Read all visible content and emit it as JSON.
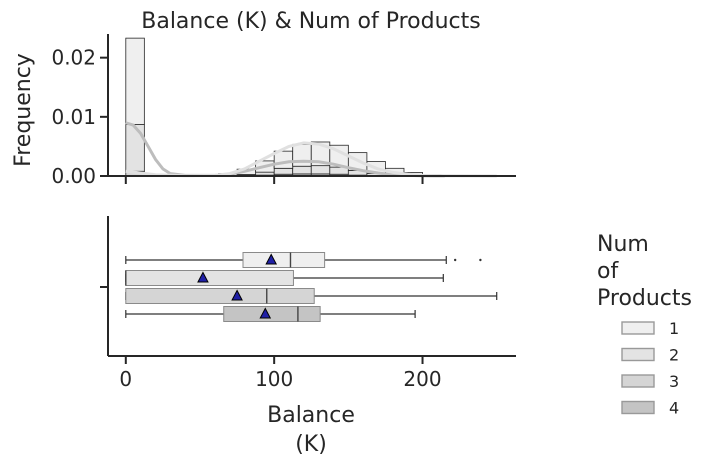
{
  "chart_data": {
    "type": "histogram+boxplot",
    "title": "Balance (K) & Num of Products",
    "histogram": {
      "ylabel": "Frequency",
      "xlim": [
        -12,
        263
      ],
      "ylim": [
        0,
        0.024
      ],
      "yticks": [
        0.0,
        0.01,
        0.02
      ],
      "ytick_labels": [
        "0.00",
        "0.01",
        "0.02"
      ],
      "bin_edges": [
        0,
        12.5,
        25,
        37.5,
        50,
        62.5,
        75,
        87.5,
        100,
        112.5,
        125,
        137.5,
        150,
        162.5,
        175,
        187.5,
        200,
        212.5,
        225,
        237.5,
        250
      ],
      "series": [
        {
          "name": "4",
          "color": "#c4c4c4",
          "values": [
            0.0001,
            0,
            0,
            0,
            0,
            0,
            0,
            5e-05,
            0.0001,
            0.0001,
            0.0001,
            0.0001,
            5e-05,
            0,
            0,
            0,
            0,
            0,
            0,
            0
          ]
        },
        {
          "name": "3",
          "color": "#d5d5d5",
          "values": [
            0.0007,
            0,
            0,
            0,
            0,
            0,
            5e-05,
            0.0001,
            0.0002,
            0.00025,
            0.00025,
            0.0002,
            0.0001,
            5e-05,
            0,
            0,
            0,
            0,
            0,
            0
          ]
        },
        {
          "name": "2",
          "color": "#e3e3e3",
          "values": [
            0.0079,
            0,
            0,
            0,
            0,
            0,
            0.0002,
            0.0005,
            0.001,
            0.0013,
            0.0014,
            0.0012,
            0.0008,
            0.0004,
            0.0002,
            0.0001,
            0,
            0,
            0,
            0
          ]
        },
        {
          "name": "1",
          "color": "#efefef",
          "values": [
            0.0146,
            0,
            0,
            0,
            0.0001,
            0.0004,
            0.0009,
            0.0019,
            0.0029,
            0.0037,
            0.004,
            0.0037,
            0.003,
            0.002,
            0.0011,
            0.0005,
            0.0002,
            0.0001,
            0,
            0
          ]
        }
      ],
      "kde": [
        {
          "name": "stacked",
          "color": "#bdbdbd",
          "points": [
            [
              0,
              0.009
            ],
            [
              5,
              0.0086
            ],
            [
              10,
              0.0072
            ],
            [
              15,
              0.005
            ],
            [
              20,
              0.0028
            ],
            [
              25,
              0.0012
            ],
            [
              30,
              0.0004
            ],
            [
              40,
              0.0001
            ],
            [
              60,
              0.0001
            ],
            [
              70,
              0.0003
            ],
            [
              80,
              0.0008
            ],
            [
              90,
              0.0014
            ],
            [
              100,
              0.002
            ],
            [
              110,
              0.0024
            ],
            [
              120,
              0.0025
            ],
            [
              130,
              0.0024
            ],
            [
              140,
              0.002
            ],
            [
              150,
              0.0014
            ],
            [
              160,
              0.0009
            ],
            [
              170,
              0.0005
            ],
            [
              180,
              0.0002
            ],
            [
              190,
              0.0001
            ],
            [
              200,
              5e-05
            ],
            [
              215,
              0.0
            ]
          ]
        },
        {
          "name": "upper",
          "color": "#e0e0e0",
          "points": [
            [
              0,
              0.0008
            ],
            [
              20,
              0.0002
            ],
            [
              40,
              5e-05
            ],
            [
              60,
              0.0001
            ],
            [
              70,
              0.0004
            ],
            [
              80,
              0.0012
            ],
            [
              90,
              0.0025
            ],
            [
              100,
              0.0038
            ],
            [
              110,
              0.005
            ],
            [
              120,
              0.0056
            ],
            [
              130,
              0.0054
            ],
            [
              140,
              0.0046
            ],
            [
              150,
              0.0034
            ],
            [
              160,
              0.0022
            ],
            [
              170,
              0.0012
            ],
            [
              180,
              0.0006
            ],
            [
              190,
              0.0003
            ],
            [
              200,
              0.0001
            ],
            [
              215,
              3e-05
            ],
            [
              250,
              0.0
            ]
          ]
        }
      ]
    },
    "boxplot": {
      "xlabel": "Balance\n(K)",
      "xlim": [
        -12,
        263
      ],
      "xticks": [
        0,
        100,
        200
      ],
      "xtick_labels": [
        "0",
        "100",
        "200"
      ],
      "groups": [
        {
          "name": "1",
          "color": "#efefef",
          "whisker_low": 0,
          "q1": 79,
          "median": 111,
          "q3": 134,
          "whisker_high": 216,
          "mean": 98,
          "outliers": [
            222,
            239
          ]
        },
        {
          "name": "2",
          "color": "#e3e3e3",
          "whisker_low": 0,
          "q1": 0,
          "median": 0,
          "q3": 113,
          "whisker_high": 214,
          "mean": 52,
          "outliers": []
        },
        {
          "name": "3",
          "color": "#d5d5d5",
          "whisker_low": 0,
          "q1": 0,
          "median": 95,
          "q3": 127,
          "whisker_high": 250,
          "mean": 75,
          "outliers": []
        },
        {
          "name": "4",
          "color": "#c4c4c4",
          "whisker_low": 0,
          "q1": 66,
          "median": 116,
          "q3": 131,
          "whisker_high": 195,
          "mean": 94,
          "outliers": []
        }
      ]
    },
    "legend": {
      "title": "Num\nof\nProducts",
      "entries": [
        "1",
        "2",
        "3",
        "4"
      ],
      "placement": "right"
    }
  }
}
